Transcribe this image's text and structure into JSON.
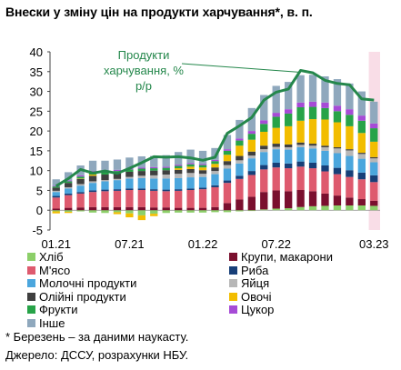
{
  "chart_data": {
    "type": "bar",
    "title": "Внески у зміну цін на продукти харчування*, в. п.",
    "x_tick_labels": [
      "01.21",
      "07.21",
      "01.22",
      "07.22",
      "03.23"
    ],
    "ylim": [
      -5,
      40
    ],
    "yticks": [
      -5,
      0,
      5,
      10,
      15,
      20,
      25,
      30,
      35,
      40
    ],
    "categories": [
      "01.21",
      "02.21",
      "03.21",
      "04.21",
      "05.21",
      "06.21",
      "07.21",
      "08.21",
      "09.21",
      "10.21",
      "11.21",
      "12.21",
      "01.22",
      "02.22",
      "03.22",
      "04.22",
      "05.22",
      "06.22",
      "07.22",
      "08.22",
      "09.22",
      "10.22",
      "11.22",
      "12.22",
      "01.23",
      "02.23",
      "03.23"
    ],
    "series": [
      {
        "name": "Хліб",
        "color": "#8ccf69",
        "values": [
          -0.3,
          -0.4,
          -0.3,
          -0.6,
          -0.7,
          -0.5,
          -0.8,
          -1.3,
          -0.9,
          -0.7,
          -0.6,
          -0.6,
          -0.6,
          -0.5,
          -0.5,
          -0.3,
          -0.2,
          0.2,
          0.4,
          0.5,
          0.8,
          1.0,
          1.1,
          1.2,
          1.2,
          1.2,
          1.1
        ]
      },
      {
        "name": "Крупи, макарони",
        "color": "#7a0f2e",
        "values": [
          0.4,
          0.6,
          0.7,
          0.8,
          0.8,
          0.8,
          0.8,
          0.8,
          0.7,
          0.7,
          0.6,
          0.6,
          0.6,
          0.8,
          1.8,
          2.7,
          3.4,
          4.4,
          4.6,
          4.3,
          4.3,
          3.8,
          3.1,
          2.5,
          2.0,
          1.6,
          1.3
        ]
      },
      {
        "name": "М'ясо",
        "color": "#de5a6e",
        "values": [
          2.8,
          3.2,
          3.5,
          3.8,
          4.0,
          4.1,
          4.3,
          4.3,
          4.2,
          4.1,
          4.3,
          4.5,
          4.7,
          5.0,
          5.1,
          5.2,
          5.5,
          5.7,
          5.8,
          5.8,
          5.9,
          5.8,
          5.6,
          5.4,
          5.2,
          5.0,
          4.7
        ]
      },
      {
        "name": "Риба",
        "color": "#173f78",
        "values": [
          0.4,
          0.4,
          0.4,
          0.4,
          0.4,
          0.4,
          0.4,
          0.4,
          0.4,
          0.4,
          0.4,
          0.4,
          0.4,
          0.5,
          0.6,
          0.8,
          1.0,
          1.1,
          1.2,
          1.2,
          1.3,
          1.4,
          1.5,
          1.6,
          1.7,
          1.7,
          1.7
        ]
      },
      {
        "name": "Молочні продукти",
        "color": "#4ba6dd",
        "values": [
          1.0,
          1.3,
          1.6,
          1.9,
          2.1,
          2.3,
          2.5,
          2.6,
          2.7,
          2.8,
          2.8,
          2.8,
          2.7,
          2.8,
          3.0,
          3.1,
          3.2,
          3.3,
          3.4,
          3.5,
          3.6,
          3.6,
          3.7,
          3.7,
          3.6,
          3.5,
          3.3
        ]
      },
      {
        "name": "Яйця",
        "color": "#b7b7b7",
        "values": [
          0.3,
          0.3,
          0.4,
          0.4,
          0.3,
          0.3,
          0.4,
          0.6,
          0.8,
          1.0,
          1.1,
          1.1,
          0.8,
          0.8,
          0.9,
          0.8,
          0.7,
          0.7,
          0.6,
          0.6,
          0.6,
          0.7,
          0.9,
          1.2,
          1.4,
          1.2,
          1.0
        ]
      },
      {
        "name": "Олійні продукти",
        "color": "#3f3f3f",
        "values": [
          0.8,
          1.1,
          1.3,
          1.4,
          1.4,
          1.4,
          1.3,
          1.2,
          1.2,
          1.1,
          1.0,
          1.0,
          0.9,
          0.9,
          1.0,
          1.1,
          1.0,
          0.9,
          0.8,
          0.7,
          0.6,
          0.5,
          0.4,
          0.3,
          0.3,
          0.3,
          0.3
        ]
      },
      {
        "name": "Овочі",
        "color": "#f2bd00",
        "values": [
          -0.5,
          -0.3,
          0.1,
          0.3,
          0.0,
          -0.5,
          -1.0,
          -1.2,
          -0.6,
          0.0,
          0.4,
          0.6,
          0.7,
          0.9,
          1.6,
          2.6,
          3.0,
          3.5,
          4.0,
          4.6,
          5.5,
          6.2,
          6.6,
          6.3,
          5.8,
          5.0,
          3.9
        ]
      },
      {
        "name": "Фрукти",
        "color": "#27a348",
        "values": [
          0.3,
          0.4,
          0.5,
          0.6,
          0.6,
          0.6,
          0.6,
          0.6,
          0.6,
          0.6,
          0.6,
          0.6,
          0.6,
          0.7,
          1.0,
          1.3,
          1.5,
          2.0,
          2.8,
          3.2,
          3.4,
          3.1,
          2.9,
          2.8,
          2.9,
          3.1,
          3.4
        ]
      },
      {
        "name": "Цукор",
        "color": "#a64bd6",
        "values": [
          0.2,
          0.2,
          0.3,
          0.3,
          0.3,
          0.3,
          0.3,
          0.3,
          0.3,
          0.3,
          0.3,
          0.3,
          0.3,
          0.3,
          0.4,
          0.5,
          0.7,
          0.9,
          1.0,
          1.1,
          1.2,
          1.3,
          1.4,
          1.4,
          1.4,
          1.3,
          1.2
        ]
      },
      {
        "name": "Інше",
        "color": "#8fa8bd",
        "values": [
          1.6,
          2.1,
          2.5,
          2.6,
          2.6,
          2.6,
          2.7,
          2.8,
          2.8,
          2.9,
          3.2,
          3.4,
          3.3,
          3.0,
          3.6,
          4.7,
          5.8,
          6.4,
          6.8,
          6.9,
          6.9,
          6.8,
          6.6,
          6.7,
          6.5,
          6.1,
          5.5
        ]
      }
    ],
    "line": {
      "name": "Продукти харчування, % р/р",
      "color": "#24874b",
      "values": [
        6.1,
        8.0,
        10.3,
        9.4,
        9.9,
        9.3,
        10.6,
        12.0,
        13.5,
        13.4,
        13.5,
        13.2,
        12.6,
        13.4,
        19.4,
        21.3,
        23.4,
        27.8,
        29.8,
        30.6,
        35.3,
        34.7,
        32.8,
        32.0,
        31.7,
        28.1,
        27.8
      ]
    },
    "annotation": {
      "lines": [
        "Продукти",
        "харчування, %",
        "р/р"
      ]
    },
    "shaded_last_period": true
  },
  "legend": [
    {
      "label": "Хліб",
      "color": "#8ccf69"
    },
    {
      "label": "Крупи, макарони",
      "color": "#7a0f2e"
    },
    {
      "label": "М'ясо",
      "color": "#de5a6e"
    },
    {
      "label": "Риба",
      "color": "#173f78"
    },
    {
      "label": "Молочні продукти",
      "color": "#4ba6dd"
    },
    {
      "label": "Яйця",
      "color": "#b7b7b7"
    },
    {
      "label": "Олійні продукти",
      "color": "#3f3f3f"
    },
    {
      "label": "Овочі",
      "color": "#f2bd00"
    },
    {
      "label": "Фрукти",
      "color": "#27a348"
    },
    {
      "label": "Цукор",
      "color": "#a64bd6"
    },
    {
      "label": "Інше",
      "color": "#8fa8bd"
    }
  ],
  "footnotes": {
    "note": "* Березень – за даними наукасту.",
    "source": "Джерело: ДССУ, розрахунки НБУ."
  }
}
